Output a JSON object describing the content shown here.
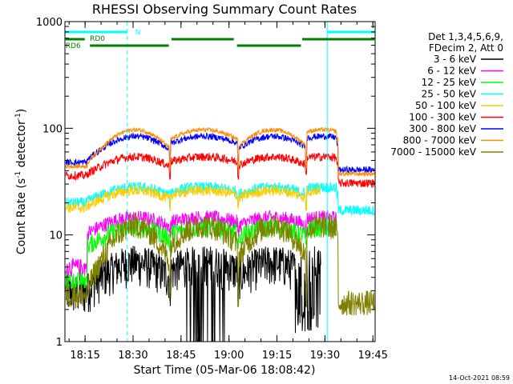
{
  "chart_data": {
    "type": "line",
    "title": "RHESSI Observing Summary Count Rates",
    "xlabel": "Start Time (05-Mar-06 18:08:42)",
    "ylabel_parts": [
      "Count Rate (s",
      "-1",
      " detector",
      "-1",
      ")"
    ],
    "y_scale": "log",
    "ylim": [
      1,
      1000
    ],
    "xlim_minutes": [
      0,
      97
    ],
    "x_ticks": [
      {
        "label": "18:15",
        "min": 6.3
      },
      {
        "label": "18:30",
        "min": 21.3
      },
      {
        "label": "18:45",
        "min": 36.3
      },
      {
        "label": "19:00",
        "min": 51.3
      },
      {
        "label": "19:15",
        "min": 66.3
      },
      {
        "label": "19:30",
        "min": 81.3
      },
      {
        "label": "19:45",
        "min": 96.3
      }
    ],
    "y_ticks": [
      {
        "label": "1",
        "value": 1
      },
      {
        "label": "10",
        "value": 10
      },
      {
        "label": "100",
        "value": 100
      },
      {
        "label": "1000",
        "value": 1000
      }
    ],
    "legend_header": [
      "Det 1,3,4,5,6,9,",
      "FDecim 2, Att 0"
    ],
    "night_periods": [
      [
        0,
        19.5
      ],
      [
        82.0,
        97.0
      ]
    ],
    "saa_periods": [
      [
        6.5,
        32.5
      ],
      [
        53.5,
        75.0
      ]
    ],
    "annotations": [
      {
        "text": "N",
        "x": 22.0,
        "color": "#00ffff"
      },
      {
        "text": "RD0",
        "x": 7.8,
        "color": "#008000"
      },
      {
        "text": "RD6",
        "x": 0.2,
        "color": "#008000"
      }
    ],
    "orbit_day_windows": [
      [
        7.0,
        32.6
      ],
      [
        33.0,
        54.0
      ],
      [
        54.4,
        75.2
      ],
      [
        75.6,
        85.5
      ]
    ],
    "series": [
      {
        "name": "3 - 6 keV",
        "color": "#000000",
        "base": 2.8,
        "amp": 1.9,
        "noise": 0.5,
        "end": 80
      },
      {
        "name": "6 - 12 keV",
        "color": "#ff00ff",
        "base": 10.0,
        "amp": 1.45,
        "noise": 0.07,
        "end": 85
      },
      {
        "name": "12 - 25 keV",
        "color": "#00ff00",
        "base": 7.5,
        "amp": 1.55,
        "noise": 0.09,
        "end": 85
      },
      {
        "name": "25 - 50 keV",
        "color": "#00ffff",
        "base": 20.0,
        "amp": 1.4,
        "noise": 0.05,
        "end": 97
      },
      {
        "name": "50 - 100 keV",
        "color": "#ffcc00",
        "base": 18.0,
        "amp": 1.45,
        "noise": 0.05,
        "end": 80
      },
      {
        "name": "100 - 300 keV",
        "color": "#ff0000",
        "base": 36.0,
        "amp": 1.5,
        "noise": 0.04,
        "end": 97
      },
      {
        "name": "300 - 800 keV",
        "color": "#0000ff",
        "base": 48.0,
        "amp": 1.75,
        "noise": 0.03,
        "end": 97
      },
      {
        "name": "800 - 7000 keV",
        "color": "#ff8c00",
        "base": 44.0,
        "amp": 2.2,
        "noise": 0.02,
        "end": 97
      },
      {
        "name": "7000 - 15000 keV",
        "color": "#808000",
        "base": 2.7,
        "amp": 4.5,
        "noise": 0.12,
        "end": 97
      }
    ],
    "footer_date": "14-Oct-2021 08:59"
  }
}
